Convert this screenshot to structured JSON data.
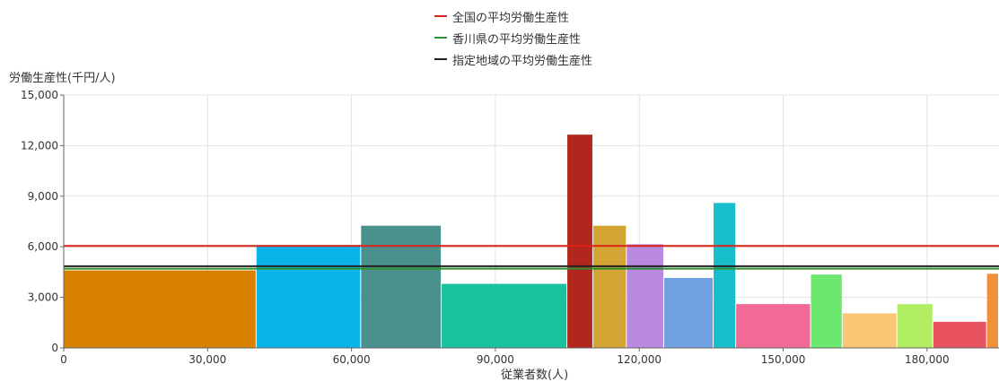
{
  "chart_data": {
    "type": "bar",
    "xlabel": "従業者数(人)",
    "ylabel": "労働生産性(千円/人)",
    "xlim": [
      0,
      195000
    ],
    "ylim": [
      0,
      15000
    ],
    "x_ticks": [
      {
        "value": 0,
        "label": "0"
      },
      {
        "value": 30000,
        "label": "30,000"
      },
      {
        "value": 60000,
        "label": "60,000"
      },
      {
        "value": 90000,
        "label": "90,000"
      },
      {
        "value": 120000,
        "label": "120,000"
      },
      {
        "value": 150000,
        "label": "150,000"
      },
      {
        "value": 180000,
        "label": "180,000"
      }
    ],
    "y_ticks": [
      {
        "value": 0,
        "label": "0"
      },
      {
        "value": 3000,
        "label": "3,000"
      },
      {
        "value": 6000,
        "label": "6,000"
      },
      {
        "value": 9000,
        "label": "9,000"
      },
      {
        "value": 12000,
        "label": "12,000"
      },
      {
        "value": 15000,
        "label": "15,000"
      }
    ],
    "grid": true,
    "legend_position": "top-center",
    "bars": [
      {
        "x0": 0,
        "x1": 40200,
        "value": 4600,
        "color": "#d98200"
      },
      {
        "x0": 40200,
        "x1": 62000,
        "value": 6100,
        "color": "#0ab3ea"
      },
      {
        "x0": 62000,
        "x1": 78800,
        "value": 7250,
        "color": "#4a918e"
      },
      {
        "x0": 78800,
        "x1": 105000,
        "value": 3800,
        "color": "#18c29c"
      },
      {
        "x0": 105000,
        "x1": 110400,
        "value": 12650,
        "color": "#b3261e"
      },
      {
        "x0": 110400,
        "x1": 117400,
        "value": 7250,
        "color": "#d4a434"
      },
      {
        "x0": 117400,
        "x1": 125200,
        "value": 6150,
        "color": "#b98ae0"
      },
      {
        "x0": 125200,
        "x1": 135500,
        "value": 4150,
        "color": "#6fa1e0"
      },
      {
        "x0": 135500,
        "x1": 140200,
        "value": 8600,
        "color": "#17bfca"
      },
      {
        "x0": 140200,
        "x1": 155800,
        "value": 2600,
        "color": "#f06a95"
      },
      {
        "x0": 155800,
        "x1": 162400,
        "value": 4350,
        "color": "#6ce870"
      },
      {
        "x0": 162400,
        "x1": 173800,
        "value": 2050,
        "color": "#f9c672"
      },
      {
        "x0": 173800,
        "x1": 181300,
        "value": 2600,
        "color": "#b2ee64"
      },
      {
        "x0": 181300,
        "x1": 192500,
        "value": 1550,
        "color": "#e8535f"
      },
      {
        "x0": 192500,
        "x1": 195000,
        "value": 4400,
        "color": "#f0903a"
      }
    ],
    "series": [
      {
        "name": "全国の平均労働生産性",
        "type": "hline",
        "value": 6050,
        "color": "#d9231b"
      },
      {
        "name": "香川県の平均労働生産性",
        "type": "hline",
        "value": 4700,
        "color": "#2e8f2e"
      },
      {
        "name": "指定地域の平均労働生産性",
        "type": "hline",
        "value": 4850,
        "color": "#222222"
      }
    ]
  }
}
